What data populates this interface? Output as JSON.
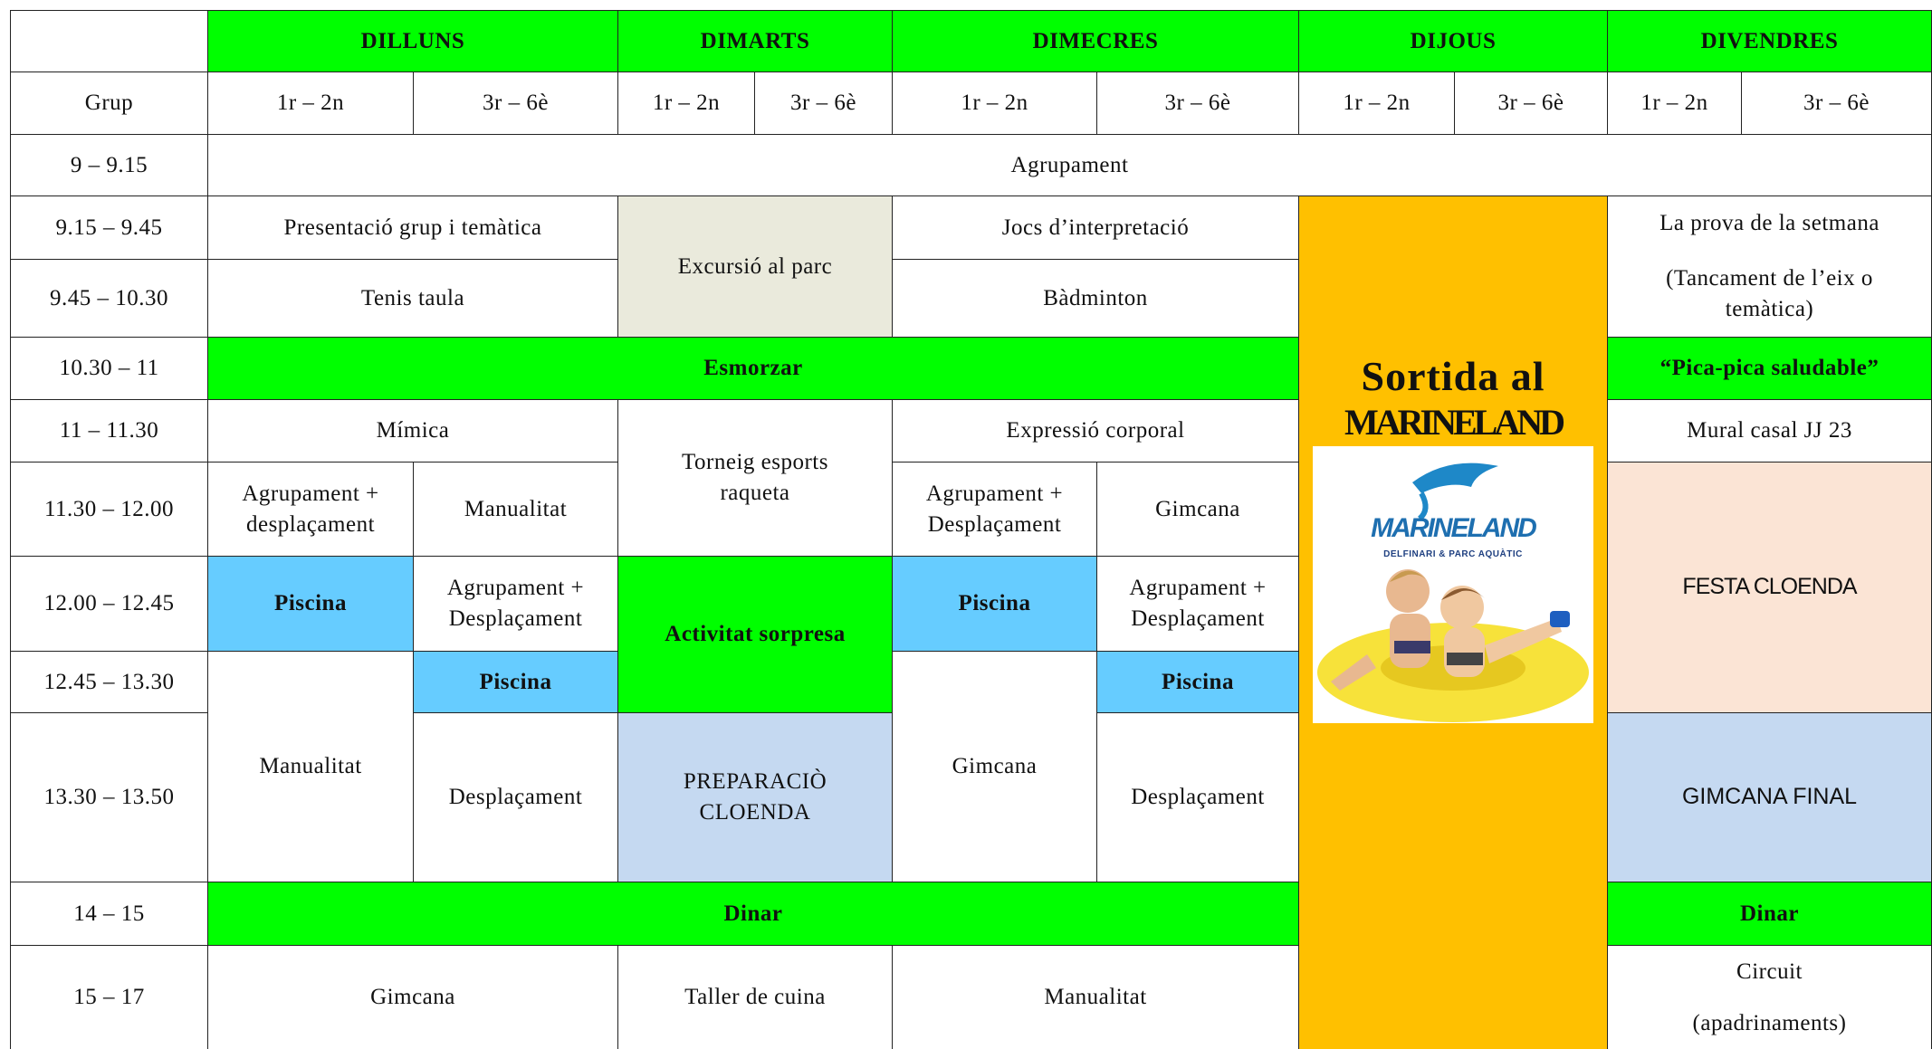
{
  "header": {
    "days": [
      "DILLUNS",
      "DIMARTS",
      "DIMECRES",
      "DIJOUS",
      "DIVENDRES"
    ],
    "group_label": "Grup",
    "levels": [
      "1r – 2n",
      "3r – 6è"
    ]
  },
  "rows": [
    {
      "time": "9 – 9.15",
      "cells": [
        "Agrupament"
      ]
    },
    {
      "time": "9.15 – 9.45",
      "cells": [
        "Presentació grup i temàtica",
        "Excursió al parc",
        "Jocs d’interpretació",
        [
          "La prova de la setmana",
          "(Tancament de l’eix o temàtica)"
        ]
      ]
    },
    {
      "time": "9.45 – 10.30",
      "cells": [
        "Tenis taula",
        "Bàdminton"
      ]
    },
    {
      "time": "10.30 – 11",
      "cells": [
        "Esmorzar",
        "“Pica-pica saludable”"
      ]
    },
    {
      "time": "11 – 11.30",
      "cells": [
        "Mímica",
        [
          "Torneig esports",
          "raqueta"
        ],
        "Expressió corporal",
        "Mural casal JJ 23"
      ]
    },
    {
      "time": "11.30 – 12.00",
      "cells": [
        [
          "Agrupament +",
          "desplaçament"
        ],
        "Manualitat",
        [
          "Agrupament +",
          "Desplaçament"
        ],
        "Gimcana",
        "FESTA CLOENDA"
      ]
    },
    {
      "time": "12.00 – 12.45",
      "cells": [
        "Piscina",
        [
          "Agrupament +",
          "Desplaçament"
        ],
        "Activitat sorpresa",
        "Piscina",
        [
          "Agrupament +",
          "Desplaçament"
        ]
      ]
    },
    {
      "time": "12.45 – 13.30",
      "cells": [
        "Manualitat",
        "Piscina",
        "Gimcana",
        "Piscina"
      ]
    },
    {
      "time": "13.30 – 13.50",
      "cells": [
        "Desplaçament",
        [
          "PREPARACIÒ",
          "CLOENDA"
        ],
        "Desplaçament",
        "GIMCANA FINAL"
      ]
    },
    {
      "time": "14 – 15",
      "cells": [
        "Dinar",
        "Dinar"
      ]
    },
    {
      "time": "15 – 17",
      "cells": [
        "Gimcana",
        "Taller de cuina",
        "Manualitat",
        [
          "Circuit",
          "(apadrinaments)"
        ]
      ]
    }
  ],
  "excursion": {
    "title": [
      "Sortida al",
      "MARINELAND"
    ],
    "logo": "MARINELAND",
    "tagline": "DELFINARI & PARC AQUÀTIC"
  }
}
